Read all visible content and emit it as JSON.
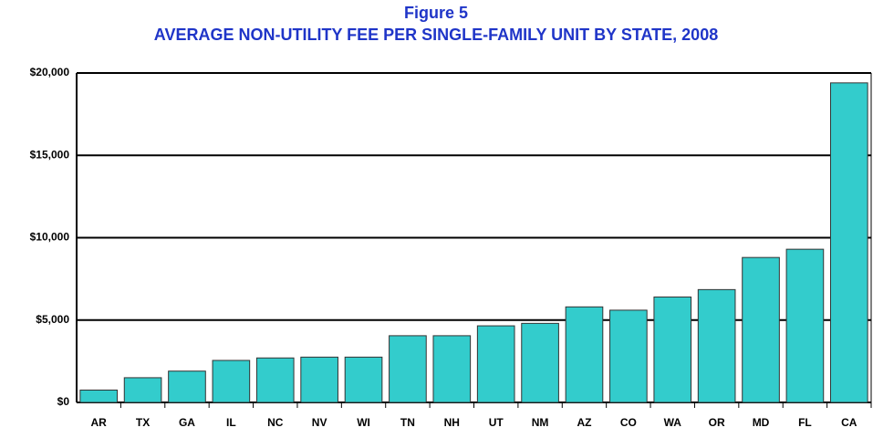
{
  "chart_data": {
    "type": "bar",
    "title": "Figure 5",
    "subtitle": "AVERAGE NON-UTILITY FEE PER SINGLE-FAMILY UNIT BY STATE, 2008",
    "categories": [
      "AR",
      "TX",
      "GA",
      "IL",
      "NC",
      "NV",
      "WI",
      "TN",
      "NH",
      "UT",
      "NM",
      "AZ",
      "CO",
      "WA",
      "OR",
      "MD",
      "FL",
      "CA"
    ],
    "values": [
      750,
      1500,
      1900,
      2550,
      2700,
      2750,
      2750,
      4050,
      4050,
      4650,
      4800,
      5800,
      5600,
      6400,
      6850,
      8800,
      9300,
      19400
    ],
    "color": "#33cccc",
    "ylim": [
      0,
      20000
    ],
    "yticks": [
      {
        "value": 0,
        "label": "$0"
      },
      {
        "value": 5000,
        "label": "$5,000"
      },
      {
        "value": 10000,
        "label": "$10,000"
      },
      {
        "value": 15000,
        "label": "$15,000"
      },
      {
        "value": 20000,
        "label": "$20,000"
      }
    ],
    "grid": true
  }
}
